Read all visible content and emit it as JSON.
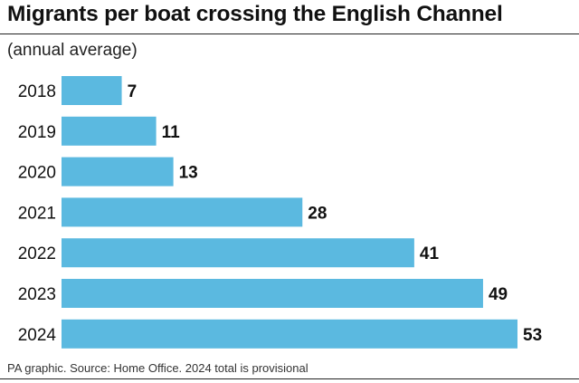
{
  "chart_data": {
    "type": "bar",
    "orientation": "horizontal",
    "title": "Migrants per boat crossing the English Channel",
    "subtitle": "(annual average)",
    "categories": [
      "2018",
      "2019",
      "2020",
      "2021",
      "2022",
      "2023",
      "2024"
    ],
    "values": [
      7,
      11,
      13,
      28,
      41,
      49,
      53
    ],
    "value_labels": [
      "7",
      "11",
      "13",
      "28",
      "41",
      "49",
      "53"
    ],
    "xlabel": "",
    "ylabel": "",
    "xlim": [
      0,
      53
    ],
    "grid": false,
    "legend": "none",
    "bar_color": "#5bb9e0"
  },
  "footer": {
    "source": "PA graphic. Source: Home Office. 2024 total is provisional"
  }
}
